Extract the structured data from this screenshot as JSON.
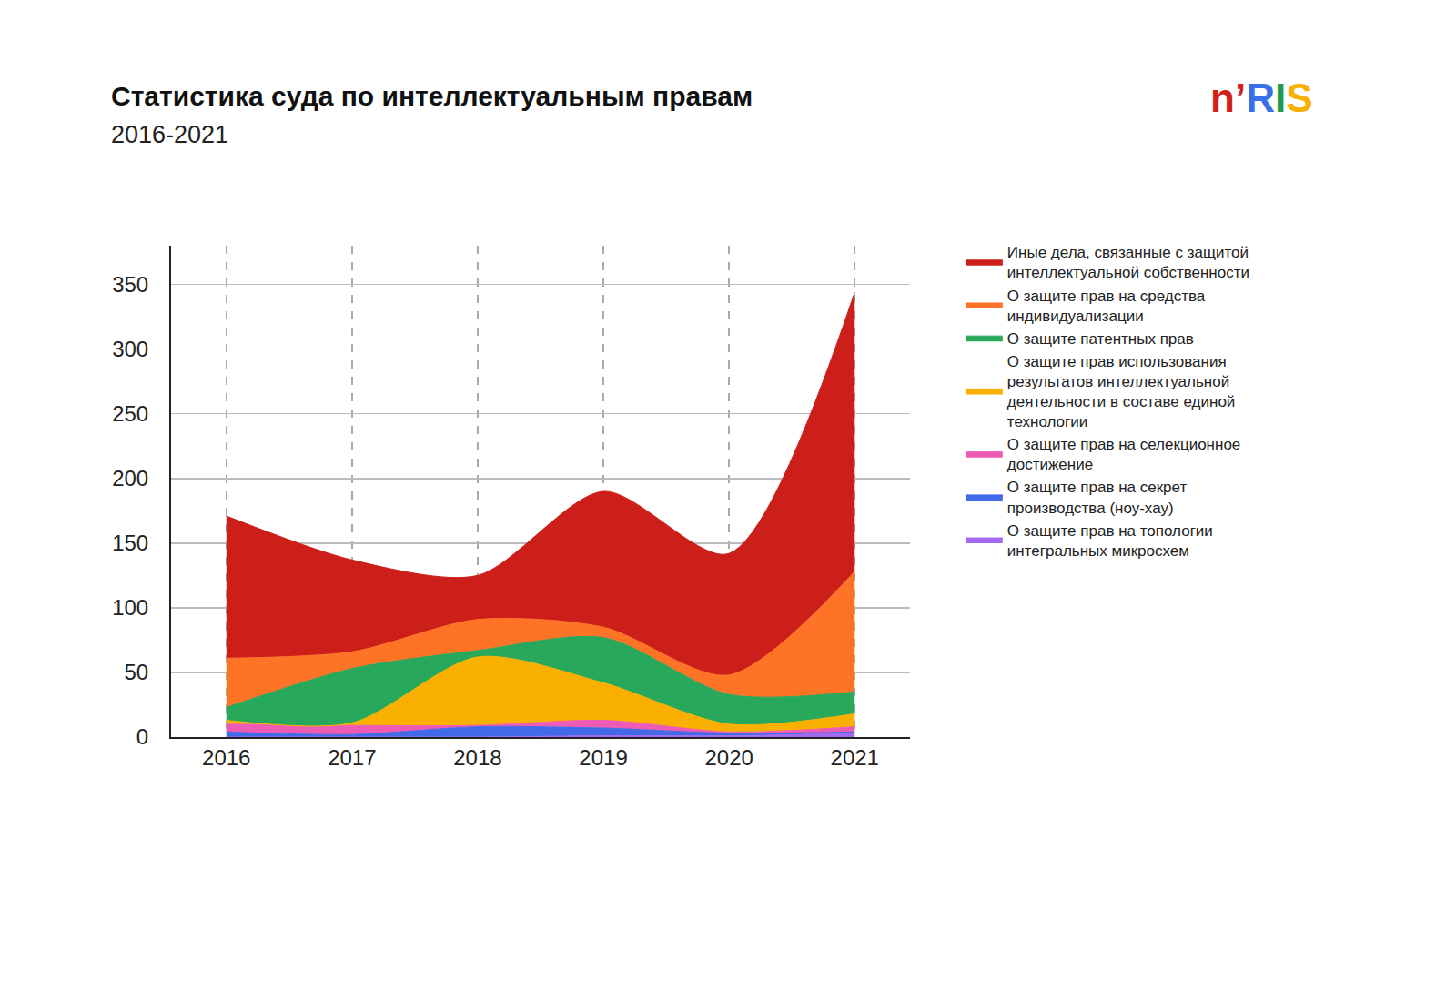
{
  "chart_data": {
    "type": "area",
    "title": "Статистика суда по интеллектуальным правам",
    "subtitle": "2016-2021",
    "annotations": [
      "n’RIS"
    ],
    "x": [
      2016,
      2017,
      2018,
      2019,
      2020,
      2021
    ],
    "xlim": [
      2015.56,
      2021.44
    ],
    "xticks": [
      2016,
      2017,
      2018,
      2019,
      2020,
      2021
    ],
    "ylim": [
      0,
      380
    ],
    "yticks": [
      0,
      50,
      100,
      150,
      200,
      250,
      300,
      350
    ],
    "grid": true,
    "stacked": true,
    "legend": "right",
    "series": [
      {
        "name": "Иные дела, связанные с защитой интеллектуальной собственности",
        "color": "#cc1f1a",
        "values": [
          110,
          71,
          34,
          105,
          94,
          216
        ]
      },
      {
        "name": "О защите прав на средства индивидуализации",
        "color": "#ff7326",
        "values": [
          38,
          13,
          24,
          8,
          15,
          93
        ]
      },
      {
        "name": "О защите патентных прав",
        "color": "#28a85a",
        "values": [
          10,
          42,
          5,
          35,
          23,
          17
        ]
      },
      {
        "name": "О защите прав использования результатов интеллектуальной деятельности в составе единой технологии",
        "color": "#f9b000",
        "values": [
          3,
          2,
          53,
          29,
          6,
          10
        ]
      },
      {
        "name": "О защите прав на селекционное достижение",
        "color": "#ee5bb5",
        "values": [
          6,
          7,
          1,
          6,
          1,
          4
        ]
      },
      {
        "name": "О защите прав на секрет производства (ноу-хау)",
        "color": "#4169e8",
        "values": [
          4,
          2,
          8,
          6,
          2,
          1
        ]
      },
      {
        "name": "О защите прав на топологии интегральных микросхем",
        "color": "#a16af0",
        "values": [
          0,
          0,
          0,
          1,
          1,
          3
        ]
      }
    ]
  }
}
